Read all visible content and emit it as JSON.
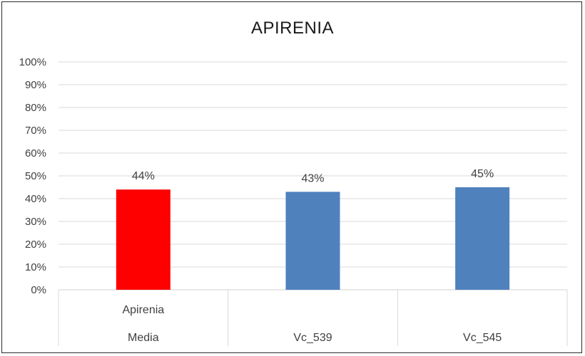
{
  "chart_data": {
    "type": "bar",
    "title": "APIRENIA",
    "xlabel": "",
    "ylabel": "",
    "categories": [
      {
        "label": "Media",
        "sublabel": "Apirenia"
      },
      {
        "label": "Vc_539",
        "sublabel": ""
      },
      {
        "label": "Vc_545",
        "sublabel": ""
      }
    ],
    "values": [
      0.44,
      0.43,
      0.45
    ],
    "data_labels": [
      "44%",
      "43%",
      "45%"
    ],
    "bar_colors": [
      "#ff0000",
      "#4f81bd",
      "#4f81bd"
    ],
    "ylim": [
      0,
      1
    ],
    "y_ticks": [
      0,
      0.1,
      0.2,
      0.3,
      0.4,
      0.5,
      0.6,
      0.7,
      0.8,
      0.9,
      1.0
    ],
    "y_tick_labels": [
      "0%",
      "10%",
      "20%",
      "30%",
      "40%",
      "50%",
      "60%",
      "70%",
      "80%",
      "90%",
      "100%"
    ],
    "grid": true,
    "legend": "none",
    "gridline_color": "#d9d9d9"
  }
}
